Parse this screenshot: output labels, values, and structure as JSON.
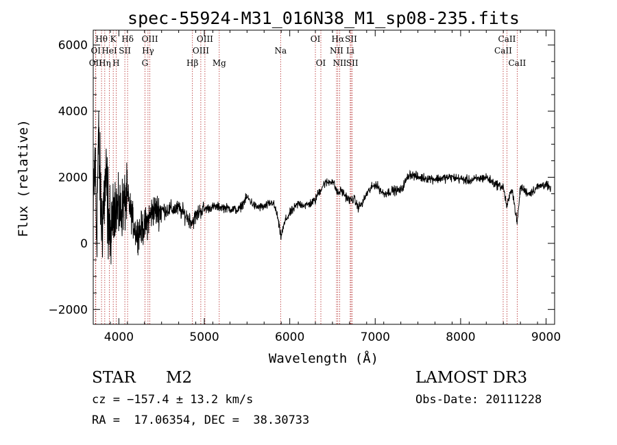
{
  "chart_data": {
    "type": "line",
    "title": "spec-55924-M31_016N38_M1_sp08-235.fits",
    "xlabel": "Wavelength (Å)",
    "ylabel": "Flux (relative)",
    "xlim": [
      3700,
      9100
    ],
    "ylim": [
      -2450,
      6450
    ],
    "x_ticks": [
      4000,
      5000,
      6000,
      7000,
      8000,
      9000
    ],
    "x_tick_labels": [
      "4000",
      "5000",
      "6000",
      "7000",
      "8000",
      "9000"
    ],
    "y_ticks": [
      -2000,
      0,
      2000,
      4000,
      6000
    ],
    "y_tick_labels": [
      "−2000",
      "0",
      "2000",
      "4000",
      "6000"
    ],
    "spectrum_anchors": [
      [
        3700,
        700
      ],
      [
        3720,
        2600
      ],
      [
        3740,
        300
      ],
      [
        3760,
        3200
      ],
      [
        3780,
        1800
      ],
      [
        3800,
        600
      ],
      [
        3850,
        1900
      ],
      [
        3900,
        100
      ],
      [
        3950,
        1300
      ],
      [
        4000,
        900
      ],
      [
        4100,
        1400
      ],
      [
        4200,
        300
      ],
      [
        4300,
        500
      ],
      [
        4400,
        1000
      ],
      [
        4500,
        1000
      ],
      [
        4700,
        1050
      ],
      [
        4860,
        650
      ],
      [
        4950,
        1000
      ],
      [
        5100,
        1100
      ],
      [
        5200,
        1100
      ],
      [
        5300,
        1050
      ],
      [
        5400,
        1000
      ],
      [
        5500,
        1400
      ],
      [
        5600,
        1100
      ],
      [
        5700,
        1100
      ],
      [
        5800,
        1250
      ],
      [
        5850,
        900
      ],
      [
        5895,
        200
      ],
      [
        5950,
        700
      ],
      [
        6000,
        900
      ],
      [
        6100,
        1200
      ],
      [
        6200,
        1150
      ],
      [
        6300,
        1300
      ],
      [
        6320,
        1450
      ],
      [
        6400,
        1800
      ],
      [
        6500,
        1900
      ],
      [
        6563,
        1500
      ],
      [
        6600,
        1600
      ],
      [
        6700,
        1300
      ],
      [
        6750,
        1350
      ],
      [
        6800,
        1100
      ],
      [
        6850,
        1200
      ],
      [
        6900,
        1500
      ],
      [
        7000,
        1800
      ],
      [
        7100,
        1500
      ],
      [
        7200,
        1600
      ],
      [
        7300,
        1600
      ],
      [
        7400,
        2100
      ],
      [
        7500,
        2000
      ],
      [
        7700,
        1950
      ],
      [
        7900,
        2000
      ],
      [
        8100,
        1900
      ],
      [
        8300,
        2000
      ],
      [
        8400,
        1800
      ],
      [
        8500,
        1700
      ],
      [
        8542,
        1100
      ],
      [
        8600,
        1700
      ],
      [
        8662,
        600
      ],
      [
        8700,
        1700
      ],
      [
        8800,
        1500
      ],
      [
        8900,
        1700
      ],
      [
        9000,
        1800
      ],
      [
        9050,
        1600
      ]
    ],
    "lines": [
      {
        "name": "OII",
        "x": 3727,
        "row": 3
      },
      {
        "name": "OI",
        "x": 3730,
        "row": 2
      },
      {
        "name": "Hθ",
        "x": 3797,
        "row": 1
      },
      {
        "name": "Hη",
        "x": 3835,
        "row": 3
      },
      {
        "name": "K",
        "x": 3934,
        "row": 1
      },
      {
        "name": "HeI",
        "x": 3889,
        "row": 2
      },
      {
        "name": "H",
        "x": 3968,
        "row": 3
      },
      {
        "name": "SII",
        "x": 4070,
        "row": 2
      },
      {
        "name": "Hδ",
        "x": 4102,
        "row": 1
      },
      {
        "name": "OIII",
        "x": 4363,
        "row": 1
      },
      {
        "name": "Hγ",
        "x": 4341,
        "row": 2
      },
      {
        "name": "G",
        "x": 4305,
        "row": 3
      },
      {
        "name": "Hβ",
        "x": 4861,
        "row": 3
      },
      {
        "name": "OIII",
        "x": 4959,
        "row": 2
      },
      {
        "name": "OIII",
        "x": 5007,
        "row": 1
      },
      {
        "name": "Mg",
        "x": 5175,
        "row": 3
      },
      {
        "name": "Na",
        "x": 5893,
        "row": 2
      },
      {
        "name": "OI",
        "x": 6300,
        "row": 1
      },
      {
        "name": "OI",
        "x": 6364,
        "row": 3
      },
      {
        "name": "Hα",
        "x": 6563,
        "row": 1
      },
      {
        "name": "NII",
        "x": 6548,
        "row": 2
      },
      {
        "name": "NII",
        "x": 6584,
        "row": 3
      },
      {
        "name": "SII",
        "x": 6717,
        "row": 1
      },
      {
        "name": "Li",
        "x": 6708,
        "row": 2
      },
      {
        "name": "SII",
        "x": 6731,
        "row": 3
      },
      {
        "name": "CaII",
        "x": 8542,
        "row": 1
      },
      {
        "name": "CaII",
        "x": 8498,
        "row": 2
      },
      {
        "name": "CaII",
        "x": 8662,
        "row": 3
      }
    ]
  },
  "info": {
    "object_class": "STAR",
    "subclass": "M2",
    "cz": "cz = −157.4 ± 13.2 km/s",
    "coords": "RA =  17.06354, DEC =  38.30733",
    "survey": "LAMOST DR3",
    "obs_date": "Obs-Date: 20111228"
  },
  "colors": {
    "spectrum": "#000000",
    "line_marker": "#b22222",
    "axes": "#000000"
  }
}
